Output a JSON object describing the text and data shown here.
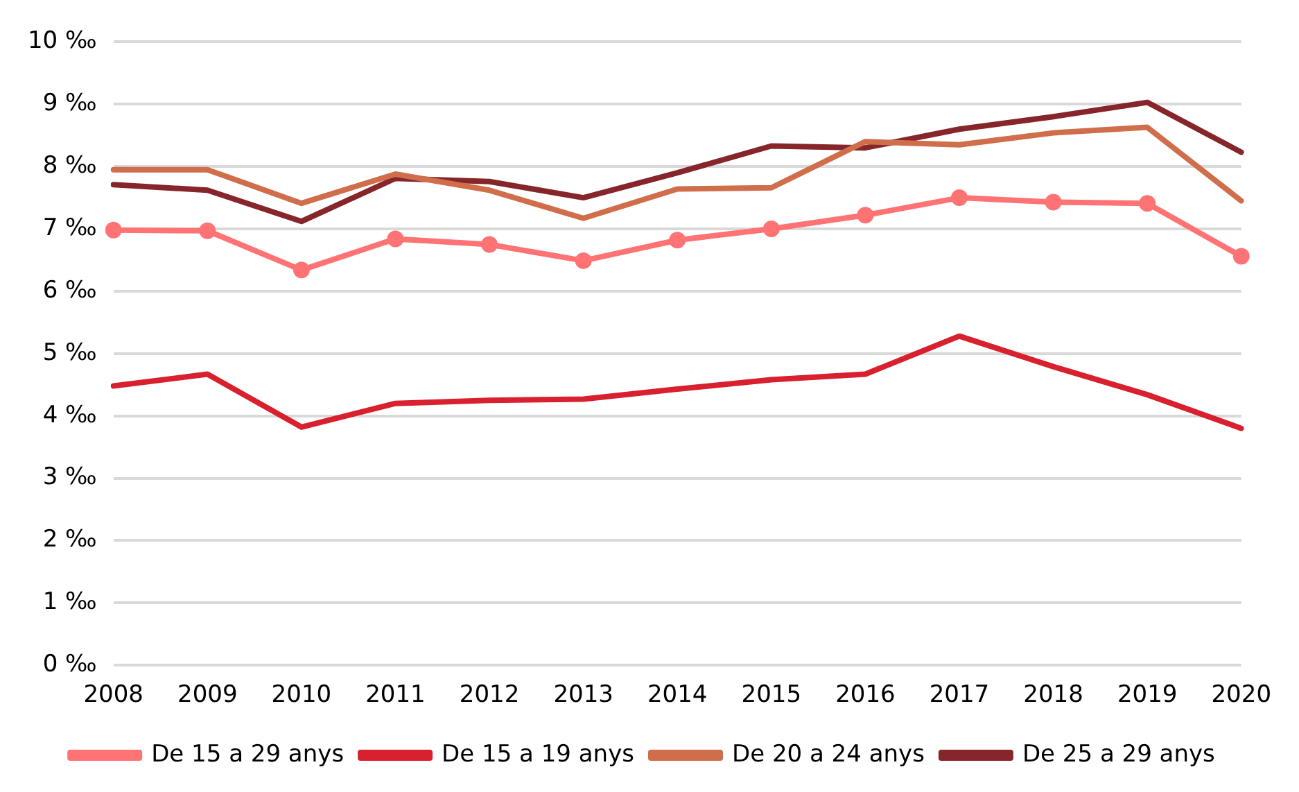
{
  "chart_data": {
    "type": "line",
    "categories": [
      "2008",
      "2009",
      "2010",
      "2011",
      "2012",
      "2013",
      "2014",
      "2015",
      "2016",
      "2017",
      "2018",
      "2019",
      "2020"
    ],
    "series": [
      {
        "name": "De 15 a 29 anys",
        "color": "#ff7375",
        "marker": "circle",
        "values": [
          6.98,
          6.97,
          6.34,
          6.84,
          6.75,
          6.49,
          6.82,
          7.0,
          7.22,
          7.5,
          7.43,
          7.41,
          6.56
        ]
      },
      {
        "name": "De 15 a 19 anys",
        "color": "#d9202e",
        "marker": "none",
        "values": [
          4.48,
          4.67,
          3.82,
          4.2,
          4.25,
          4.27,
          4.43,
          4.58,
          4.67,
          5.28,
          4.79,
          4.34,
          3.8
        ]
      },
      {
        "name": "De 20 a 24 anys",
        "color": "#d06e4c",
        "marker": "none",
        "values": [
          7.95,
          7.95,
          7.41,
          7.88,
          7.62,
          7.17,
          7.64,
          7.66,
          8.4,
          8.35,
          8.54,
          8.63,
          7.45
        ]
      },
      {
        "name": "De 25 a 29 anys",
        "color": "#86262a",
        "marker": "none",
        "values": [
          7.71,
          7.62,
          7.12,
          7.81,
          7.76,
          7.5,
          7.9,
          8.33,
          8.3,
          8.6,
          8.8,
          9.03,
          8.23
        ]
      }
    ],
    "ylim": [
      0,
      10
    ],
    "yticks": [
      {
        "value": 0,
        "label": "0 ‰"
      },
      {
        "value": 1,
        "label": "1 ‰"
      },
      {
        "value": 2,
        "label": "2 ‰"
      },
      {
        "value": 3,
        "label": "3 ‰"
      },
      {
        "value": 4,
        "label": "4 ‰"
      },
      {
        "value": 5,
        "label": "5 ‰"
      },
      {
        "value": 6,
        "label": "6 ‰"
      },
      {
        "value": 7,
        "label": "7 ‰"
      },
      {
        "value": 8,
        "label": "8 ‰"
      },
      {
        "value": 9,
        "label": "9 ‰"
      },
      {
        "value": 10,
        "label": "10 ‰"
      }
    ],
    "grid": "y",
    "legend": "bottom",
    "line_style": "solid"
  }
}
